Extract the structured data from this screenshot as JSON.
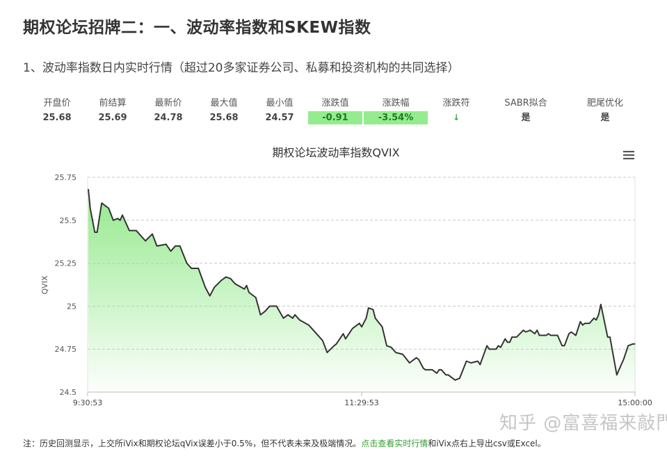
{
  "header": {
    "title": "期权论坛招牌二：一、波动率指数和SKEW指数",
    "subtitle": "1、波动率指数日内实时行情（超过20多家证券公司、私募和投资机构的共同选择）"
  },
  "stats": [
    {
      "label": "开盘价",
      "value": "25.68"
    },
    {
      "label": "前结算",
      "value": "25.69"
    },
    {
      "label": "最新价",
      "value": "24.78"
    },
    {
      "label": "最大值",
      "value": "25.68"
    },
    {
      "label": "最小值",
      "value": "24.57"
    },
    {
      "label": "涨跌值",
      "value": "-0.91",
      "highlight": true
    },
    {
      "label": "涨跌幅",
      "value": "-3.54%",
      "highlight": true
    },
    {
      "label": "涨跌符",
      "value": "↓",
      "icon": "arrow-down-icon"
    },
    {
      "label": "SABR拟合",
      "value": "是"
    },
    {
      "label": "肥尾优化",
      "value": "是"
    }
  ],
  "colors": {
    "up_down_box": "#94ec8f",
    "line": "#333333",
    "fill_top": "#8fe887",
    "link": "#35a035"
  },
  "chart_menu_icon": "hamburger-menu-icon",
  "chart_data": {
    "type": "area",
    "title": "期权论坛波动率指数QVIX",
    "ylabel": "QVIX",
    "xlabel": "",
    "ylim": [
      24.5,
      25.75
    ],
    "yticks": [
      "24.5",
      "24.75",
      "25",
      "25.25",
      "25.5",
      "25.75"
    ],
    "xticks": [
      "9:30:53",
      "11:29:53",
      "15:00:00"
    ],
    "grid": true,
    "legend": "none",
    "points": [
      [
        "9:31",
        25.68
      ],
      [
        "9:32",
        25.57
      ],
      [
        "9:34",
        25.43
      ],
      [
        "9:35",
        25.43
      ],
      [
        "9:37",
        25.6
      ],
      [
        "9:40",
        25.57
      ],
      [
        "9:42",
        25.5
      ],
      [
        "9:44",
        25.51
      ],
      [
        "9:45",
        25.5
      ],
      [
        "9:46",
        25.53
      ],
      [
        "9:49",
        25.44
      ],
      [
        "9:52",
        25.44
      ],
      [
        "9:56",
        25.38
      ],
      [
        "9:59",
        25.42
      ],
      [
        "10:01",
        25.35
      ],
      [
        "10:05",
        25.36
      ],
      [
        "10:07",
        25.32
      ],
      [
        "10:09",
        25.35
      ],
      [
        "10:11",
        25.35
      ],
      [
        "10:14",
        25.25
      ],
      [
        "10:16",
        25.22
      ],
      [
        "10:19",
        25.22
      ],
      [
        "10:22",
        25.11
      ],
      [
        "10:24",
        25.06
      ],
      [
        "10:26",
        25.11
      ],
      [
        "10:29",
        25.15
      ],
      [
        "10:31",
        25.17
      ],
      [
        "10:33",
        25.16
      ],
      [
        "10:35",
        25.13
      ],
      [
        "10:39",
        25.1
      ],
      [
        "10:40",
        25.12
      ],
      [
        "10:41",
        25.08
      ],
      [
        "10:44",
        25.05
      ],
      [
        "10:46",
        24.95
      ],
      [
        "10:48",
        24.97
      ],
      [
        "10:50",
        25.0
      ],
      [
        "10:53",
        25.0
      ],
      [
        "10:56",
        24.93
      ],
      [
        "10:58",
        24.95
      ],
      [
        "11:00",
        24.93
      ],
      [
        "11:01",
        24.95
      ],
      [
        "11:03",
        24.92
      ],
      [
        "11:07",
        24.89
      ],
      [
        "11:11",
        24.83
      ],
      [
        "11:13",
        24.8
      ],
      [
        "11:15",
        24.73
      ],
      [
        "11:18",
        24.77
      ],
      [
        "11:19",
        24.78
      ],
      [
        "11:22",
        24.84
      ],
      [
        "11:23",
        24.81
      ],
      [
        "11:26",
        24.87
      ],
      [
        "11:29",
        24.9
      ],
      [
        "11:30",
        24.88
      ],
      [
        "13:02",
        24.93
      ],
      [
        "13:03",
        24.99
      ],
      [
        "13:05",
        24.98
      ],
      [
        "13:06",
        24.93
      ],
      [
        "13:09",
        24.88
      ],
      [
        "13:11",
        24.77
      ],
      [
        "13:13",
        24.76
      ],
      [
        "13:15",
        24.73
      ],
      [
        "13:18",
        24.72
      ],
      [
        "13:21",
        24.67
      ],
      [
        "13:24",
        24.7
      ],
      [
        "13:25",
        24.69
      ],
      [
        "13:27",
        24.64
      ],
      [
        "13:28",
        24.63
      ],
      [
        "13:29",
        24.63
      ],
      [
        "13:31",
        24.63
      ],
      [
        "13:33",
        24.61
      ],
      [
        "13:34",
        24.63
      ],
      [
        "13:35",
        24.63
      ],
      [
        "13:37",
        24.6
      ],
      [
        "13:38",
        24.6
      ],
      [
        "13:41",
        24.57
      ],
      [
        "13:43",
        24.58
      ],
      [
        "13:46",
        24.68
      ],
      [
        "13:48",
        24.67
      ],
      [
        "13:51",
        24.68
      ],
      [
        "13:52",
        24.66
      ],
      [
        "13:55",
        24.77
      ],
      [
        "13:56",
        24.75
      ],
      [
        "13:59",
        24.75
      ],
      [
        "14:00",
        24.77
      ],
      [
        "14:01",
        24.76
      ],
      [
        "14:03",
        24.81
      ],
      [
        "14:04",
        24.79
      ],
      [
        "14:05",
        24.79
      ],
      [
        "14:06",
        24.82
      ],
      [
        "14:08",
        24.82
      ],
      [
        "14:11",
        24.86
      ],
      [
        "14:12",
        24.85
      ],
      [
        "14:14",
        24.86
      ],
      [
        "14:16",
        24.84
      ],
      [
        "14:17",
        24.86
      ],
      [
        "14:18",
        24.83
      ],
      [
        "14:21",
        24.83
      ],
      [
        "14:22",
        24.84
      ],
      [
        "14:23",
        24.83
      ],
      [
        "14:26",
        24.83
      ],
      [
        "14:28",
        24.77
      ],
      [
        "14:29",
        24.77
      ],
      [
        "14:31",
        24.84
      ],
      [
        "14:32",
        24.85
      ],
      [
        "14:34",
        24.83
      ],
      [
        "14:36",
        24.91
      ],
      [
        "14:37",
        24.89
      ],
      [
        "14:38",
        24.9
      ],
      [
        "14:40",
        24.9
      ],
      [
        "14:42",
        24.93
      ],
      [
        "14:43",
        24.92
      ],
      [
        "14:44",
        24.95
      ],
      [
        "14:45",
        25.01
      ],
      [
        "14:48",
        24.82
      ],
      [
        "14:49",
        24.82
      ],
      [
        "14:52",
        24.6
      ],
      [
        "14:54",
        24.66
      ],
      [
        "14:55",
        24.69
      ],
      [
        "14:57",
        24.77
      ],
      [
        "14:59",
        24.78
      ],
      [
        "15:00",
        24.78
      ]
    ]
  },
  "footer": {
    "note_before": "注：历史回测显示，上交所iVix和期权论坛qVix误差小于0.5%，但不代表未来及极端情况。",
    "link": "点击查看实时行情",
    "note_after": "和iVix点右上导出csv或Excel。"
  },
  "watermark": "知乎 @富喜福来敲門"
}
